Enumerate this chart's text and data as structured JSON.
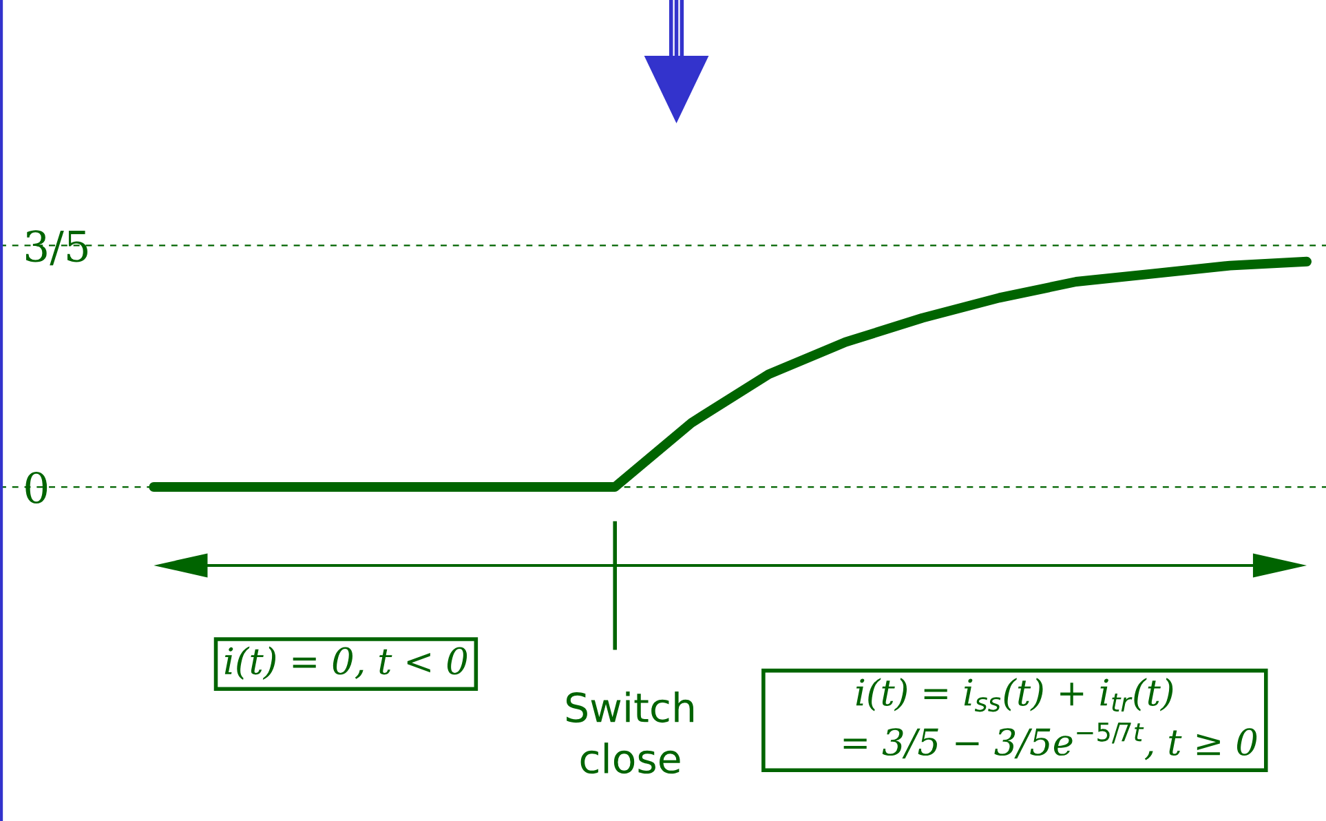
{
  "chart_data": {
    "type": "line",
    "categories": [
      null,
      null,
      null,
      null,
      null,
      null,
      null,
      null,
      null,
      null,
      null,
      null,
      null,
      null,
      null,
      null
    ],
    "series": [
      {
        "color": "#006400",
        "values": [
          0,
          0,
          0,
          0,
          0,
          0,
          0,
          0.16,
          0.28,
          0.36,
          0.42,
          0.47,
          0.51,
          0.53,
          0.55,
          0.56
        ]
      }
    ],
    "ylim": [
      -0.83,
      1.21
    ],
    "yticks": [
      {
        "value": 0,
        "label": "0"
      },
      {
        "value": 0.6,
        "label": "3/5"
      }
    ],
    "tick_labels": "y",
    "grid": false,
    "marker": "none",
    "line_style": "solid",
    "ref_lines": [
      {
        "axis": "y",
        "value": 0.6,
        "color": "#006400",
        "line_style": "dashed"
      },
      {
        "axis": "y",
        "value": 0,
        "color": "#006400",
        "line_style": "dashed"
      }
    ],
    "annotations": [
      "i(t) = 0, t < 0",
      "Switch\nclose",
      "i(t) = i$_{ss}$(t) + i$_{tr}$(t)\n      = 3/5 − 3/5e$^{−5/7t}$, t ≥ 0"
    ]
  }
}
